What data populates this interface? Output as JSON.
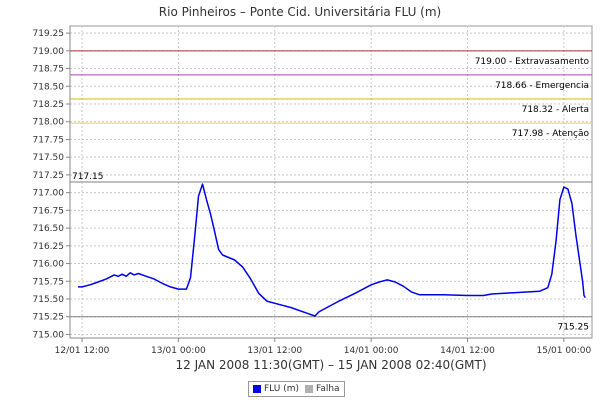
{
  "chart_data": {
    "type": "line",
    "title": "Rio Pinheiros – Ponte Cid. Universitária FLU (m)",
    "xlabel": "12 JAN 2008 11:30(GMT) – 15 JAN 2008 02:40(GMT)",
    "ylabel": "",
    "x_domain": [
      "2008-01-12T10:30",
      "2008-01-15T03:30"
    ],
    "ylim": [
      714.95,
      719.35
    ],
    "x_ticks": [
      {
        "t": "2008-01-12T12:00",
        "label": "12/01 12:00"
      },
      {
        "t": "2008-01-13T00:00",
        "label": "13/01 00:00"
      },
      {
        "t": "2008-01-13T12:00",
        "label": "13/01 12:00"
      },
      {
        "t": "2008-01-14T00:00",
        "label": "14/01 00:00"
      },
      {
        "t": "2008-01-14T12:00",
        "label": "14/01 12:00"
      },
      {
        "t": "2008-01-15T00:00",
        "label": "15/01 00:00"
      }
    ],
    "y_ticks": [
      "715.00",
      "715.25",
      "715.50",
      "715.75",
      "716.00",
      "716.25",
      "716.50",
      "716.75",
      "717.00",
      "717.25",
      "717.50",
      "717.75",
      "718.00",
      "718.25",
      "718.50",
      "718.75",
      "719.00",
      "719.25"
    ],
    "grid": true,
    "reference_lines": [
      {
        "value": 719.0,
        "label": "719.00 - Extravasamento",
        "color": "#b03030",
        "label_pos": "right"
      },
      {
        "value": 718.66,
        "label": "718.66 - Emergencia",
        "color": "#b040b0",
        "label_pos": "right"
      },
      {
        "value": 718.32,
        "label": "718.32 - Alerta",
        "color": "#d8b800",
        "label_pos": "right"
      },
      {
        "value": 717.98,
        "label": "717.98 - Atenção",
        "color": "#e8d060",
        "label_pos": "right"
      },
      {
        "value": 717.15,
        "label": "717.15",
        "color": "#808080",
        "label_pos": "left"
      },
      {
        "value": 715.25,
        "label": "715.25",
        "color": "#808080",
        "label_pos": "right"
      }
    ],
    "series": [
      {
        "name": "FLU (m)",
        "color": "#0000ee",
        "points": [
          [
            "2008-01-12T11:30",
            715.67
          ],
          [
            "2008-01-12T12:00",
            715.67
          ],
          [
            "2008-01-12T13:00",
            715.7
          ],
          [
            "2008-01-12T14:00",
            715.74
          ],
          [
            "2008-01-12T15:00",
            715.78
          ],
          [
            "2008-01-12T16:00",
            715.84
          ],
          [
            "2008-01-12T16:30",
            715.82
          ],
          [
            "2008-01-12T17:00",
            715.85
          ],
          [
            "2008-01-12T17:30",
            715.82
          ],
          [
            "2008-01-12T18:00",
            715.87
          ],
          [
            "2008-01-12T18:30",
            715.84
          ],
          [
            "2008-01-12T19:00",
            715.86
          ],
          [
            "2008-01-12T20:00",
            715.82
          ],
          [
            "2008-01-12T21:00",
            715.78
          ],
          [
            "2008-01-12T22:00",
            715.72
          ],
          [
            "2008-01-12T23:00",
            715.67
          ],
          [
            "2008-01-13T00:00",
            715.64
          ],
          [
            "2008-01-13T01:00",
            715.64
          ],
          [
            "2008-01-13T01:30",
            715.8
          ],
          [
            "2008-01-13T02:00",
            716.35
          ],
          [
            "2008-01-13T02:30",
            716.95
          ],
          [
            "2008-01-13T03:00",
            717.12
          ],
          [
            "2008-01-13T03:30",
            716.9
          ],
          [
            "2008-01-13T04:00",
            716.7
          ],
          [
            "2008-01-13T04:30",
            716.45
          ],
          [
            "2008-01-13T05:00",
            716.2
          ],
          [
            "2008-01-13T05:30",
            716.12
          ],
          [
            "2008-01-13T07:00",
            716.05
          ],
          [
            "2008-01-13T08:00",
            715.95
          ],
          [
            "2008-01-13T09:00",
            715.78
          ],
          [
            "2008-01-13T10:00",
            715.58
          ],
          [
            "2008-01-13T11:00",
            715.47
          ],
          [
            "2008-01-13T12:00",
            715.44
          ],
          [
            "2008-01-13T14:00",
            715.38
          ],
          [
            "2008-01-13T16:00",
            715.3
          ],
          [
            "2008-01-13T17:00",
            715.26
          ],
          [
            "2008-01-13T17:30",
            715.32
          ],
          [
            "2008-01-13T18:00",
            715.35
          ],
          [
            "2008-01-13T20:00",
            715.47
          ],
          [
            "2008-01-13T22:00",
            715.58
          ],
          [
            "2008-01-14T00:00",
            715.7
          ],
          [
            "2008-01-14T01:00",
            715.74
          ],
          [
            "2008-01-14T02:00",
            715.77
          ],
          [
            "2008-01-14T03:00",
            715.74
          ],
          [
            "2008-01-14T04:00",
            715.68
          ],
          [
            "2008-01-14T05:00",
            715.6
          ],
          [
            "2008-01-14T06:00",
            715.56
          ],
          [
            "2008-01-14T09:00",
            715.56
          ],
          [
            "2008-01-14T12:00",
            715.55
          ],
          [
            "2008-01-14T14:00",
            715.55
          ],
          [
            "2008-01-14T15:00",
            715.57
          ],
          [
            "2008-01-14T18:00",
            715.59
          ],
          [
            "2008-01-14T21:00",
            715.61
          ],
          [
            "2008-01-14T22:00",
            715.66
          ],
          [
            "2008-01-14T22:30",
            715.85
          ],
          [
            "2008-01-14T23:00",
            716.3
          ],
          [
            "2008-01-14T23:30",
            716.9
          ],
          [
            "2008-01-15T00:00",
            717.08
          ],
          [
            "2008-01-15T00:30",
            717.05
          ],
          [
            "2008-01-15T01:00",
            716.85
          ],
          [
            "2008-01-15T01:30",
            716.4
          ],
          [
            "2008-01-15T02:00",
            716.0
          ],
          [
            "2008-01-15T02:20",
            715.75
          ],
          [
            "2008-01-15T02:30",
            715.55
          ],
          [
            "2008-01-15T02:40",
            715.52
          ]
        ]
      }
    ],
    "legend": {
      "position": "bottom-center",
      "items": [
        {
          "name": "FLU (m)",
          "color": "#0000ee"
        },
        {
          "name": "Falha",
          "color": "#b0b0b0"
        }
      ]
    }
  }
}
